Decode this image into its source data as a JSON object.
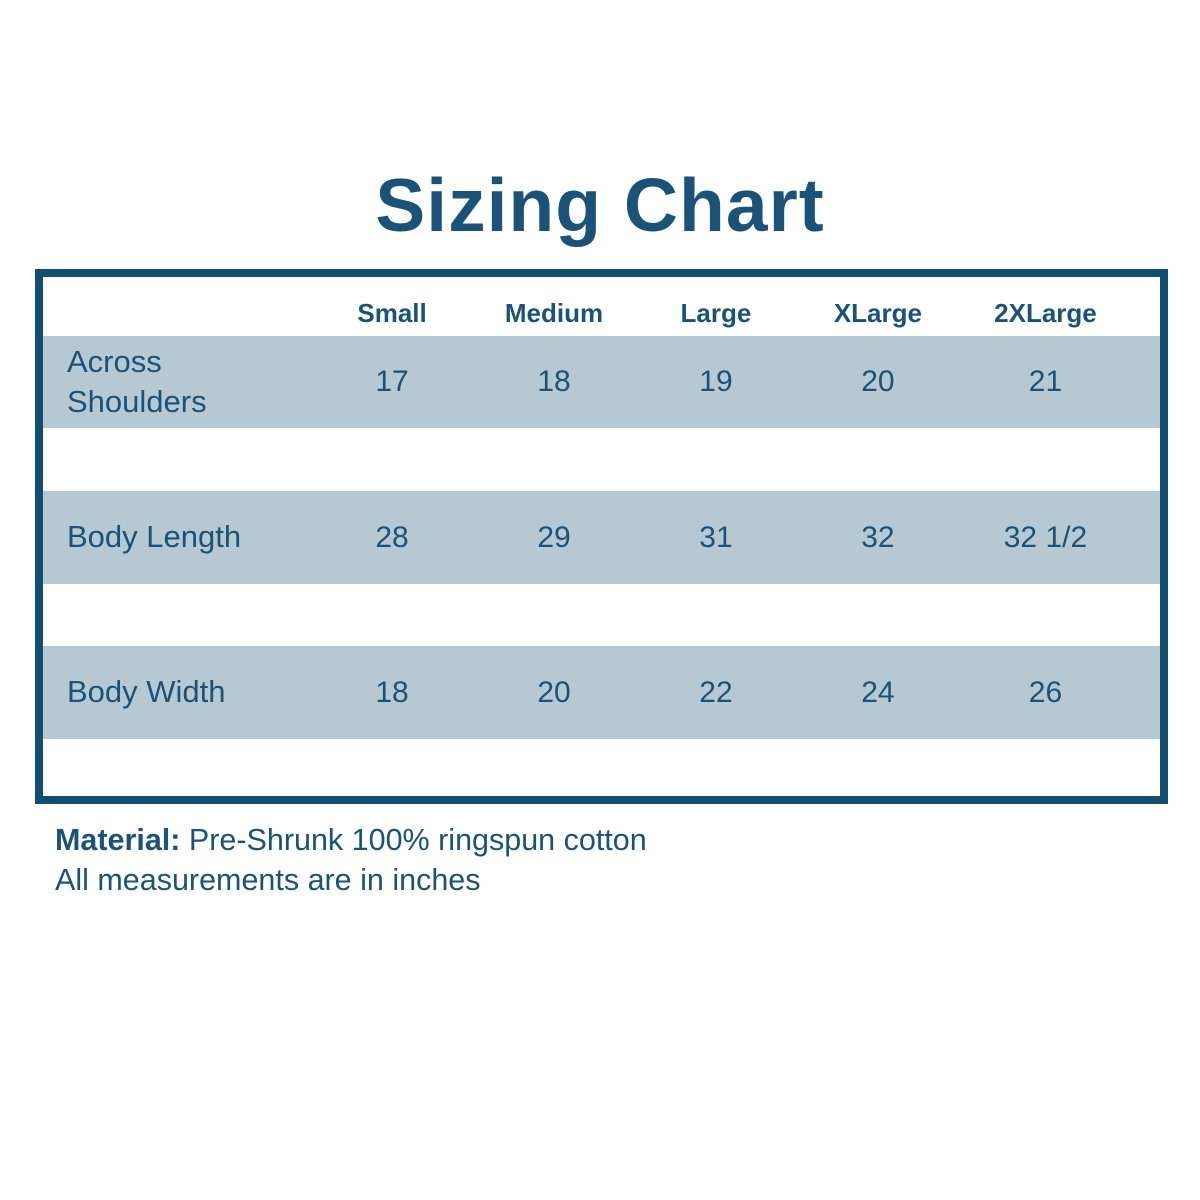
{
  "title": "Sizing Chart",
  "colors": {
    "text": "#1a5377",
    "border": "#124e70",
    "row_background": "#b6c9d3",
    "page_background": "#ffffff"
  },
  "table": {
    "columns": [
      "Small",
      "Medium",
      "Large",
      "XLarge",
      "2XLarge"
    ],
    "rows": [
      {
        "label": "Across Shoulders",
        "values": [
          "17",
          "18",
          "19",
          "20",
          "21"
        ]
      },
      {
        "label": "Body Length",
        "values": [
          "28",
          "29",
          "31",
          "32",
          "32 1/2"
        ]
      },
      {
        "label": "Body Width",
        "values": [
          "18",
          "20",
          "22",
          "24",
          "26"
        ]
      }
    ]
  },
  "footer": {
    "material_label": "Material:",
    "material_value": "Pre-Shrunk 100% ringspun cotton",
    "note": "All measurements are in inches"
  },
  "chart_data": {
    "type": "table",
    "title": "Sizing Chart",
    "categories": [
      "Small",
      "Medium",
      "Large",
      "XLarge",
      "2XLarge"
    ],
    "series": [
      {
        "name": "Across Shoulders",
        "values": [
          17,
          18,
          19,
          20,
          21
        ]
      },
      {
        "name": "Body Length",
        "values": [
          28,
          29,
          31,
          32,
          32.5
        ]
      },
      {
        "name": "Body Width",
        "values": [
          18,
          20,
          22,
          24,
          26
        ]
      }
    ],
    "units": "inches",
    "notes": [
      "Material: Pre-Shrunk 100% ringspun cotton",
      "All measurements are in inches"
    ]
  }
}
